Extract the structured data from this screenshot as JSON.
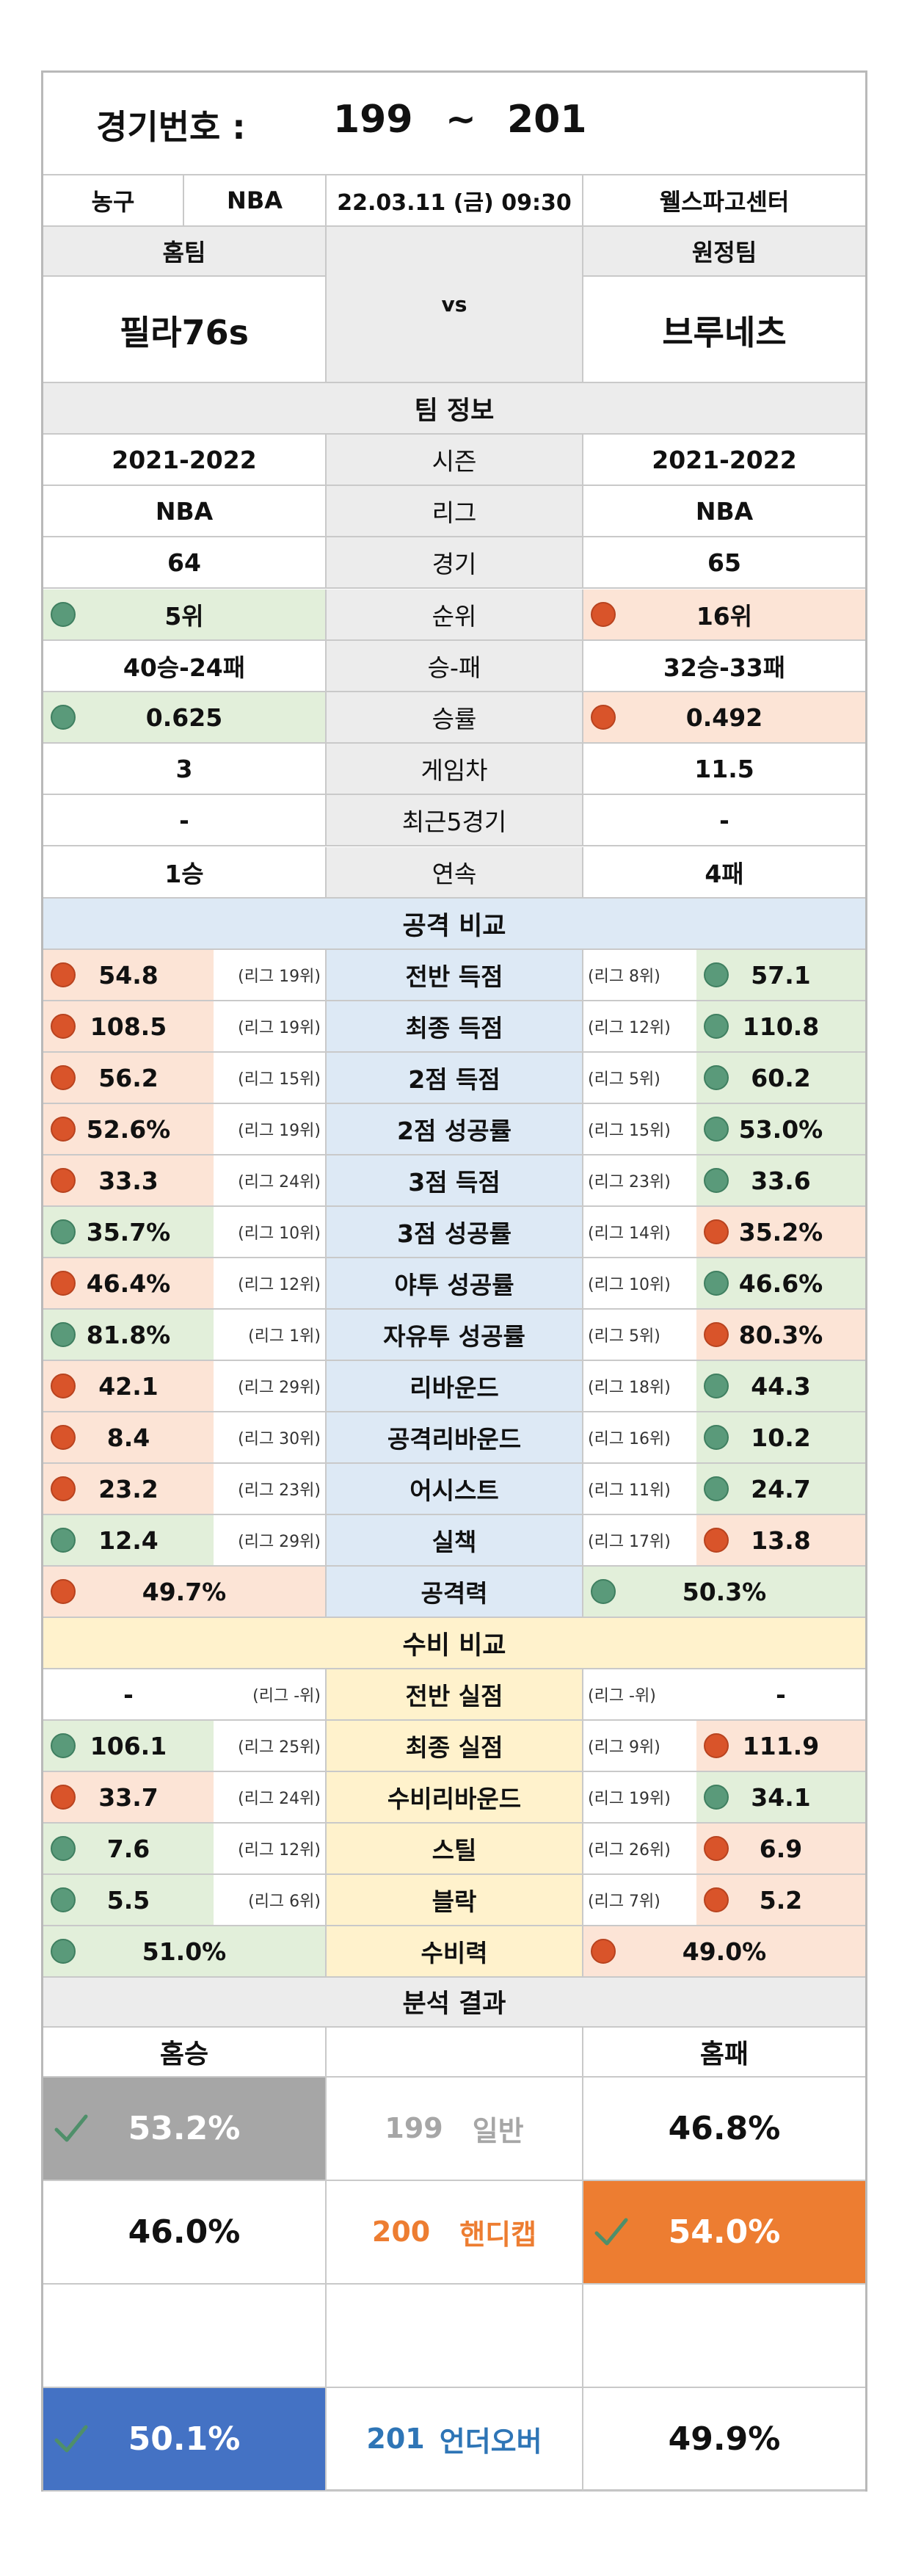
{
  "header": {
    "label": "경기번호 :",
    "start": "199",
    "tilde": "~",
    "end": "201"
  },
  "info": {
    "sport": "농구",
    "league": "NBA",
    "datetime": "22.03.11 (금) 09:30",
    "venue": "웰스파고센터"
  },
  "teams": {
    "home_label": "홈팀",
    "away_label": "원정팀",
    "vs": "vs",
    "home": "필라76s",
    "away": "브루네츠"
  },
  "team_info": {
    "title": "팀 정보",
    "rows": [
      {
        "home": "2021-2022",
        "label": "시즌",
        "away": "2021-2022",
        "home_dot": "",
        "away_dot": ""
      },
      {
        "home": "NBA",
        "label": "리그",
        "away": "NBA",
        "home_dot": "",
        "away_dot": ""
      },
      {
        "home": "64",
        "label": "경기",
        "away": "65",
        "home_dot": "",
        "away_dot": ""
      },
      {
        "home": "5위",
        "label": "순위",
        "away": "16위",
        "home_dot": "green",
        "away_dot": "red"
      },
      {
        "home": "40승-24패",
        "label": "승-패",
        "away": "32승-33패",
        "home_dot": "",
        "away_dot": ""
      },
      {
        "home": "0.625",
        "label": "승률",
        "away": "0.492",
        "home_dot": "green",
        "away_dot": "red"
      },
      {
        "home": "3",
        "label": "게임차",
        "away": "11.5",
        "home_dot": "",
        "away_dot": ""
      },
      {
        "home": "-",
        "label": "최근5경기",
        "away": "-",
        "home_dot": "",
        "away_dot": ""
      },
      {
        "home": "1승",
        "label": "연속",
        "away": "4패",
        "home_dot": "",
        "away_dot": ""
      }
    ]
  },
  "attack": {
    "title": "공격 비교",
    "rows": [
      {
        "hv": "54.8",
        "hr": "(리그 19위)",
        "label": "전반 득점",
        "ar": "(리그 8위)",
        "av": "57.1",
        "hd": "red",
        "ad": "green"
      },
      {
        "hv": "108.5",
        "hr": "(리그 19위)",
        "label": "최종 득점",
        "ar": "(리그 12위)",
        "av": "110.8",
        "hd": "red",
        "ad": "green"
      },
      {
        "hv": "56.2",
        "hr": "(리그 15위)",
        "label": "2점 득점",
        "ar": "(리그 5위)",
        "av": "60.2",
        "hd": "red",
        "ad": "green"
      },
      {
        "hv": "52.6%",
        "hr": "(리그 19위)",
        "label": "2점 성공률",
        "ar": "(리그 15위)",
        "av": "53.0%",
        "hd": "red",
        "ad": "green"
      },
      {
        "hv": "33.3",
        "hr": "(리그 24위)",
        "label": "3점 득점",
        "ar": "(리그 23위)",
        "av": "33.6",
        "hd": "red",
        "ad": "green"
      },
      {
        "hv": "35.7%",
        "hr": "(리그 10위)",
        "label": "3점 성공률",
        "ar": "(리그 14위)",
        "av": "35.2%",
        "hd": "green",
        "ad": "red"
      },
      {
        "hv": "46.4%",
        "hr": "(리그 12위)",
        "label": "야투 성공률",
        "ar": "(리그 10위)",
        "av": "46.6%",
        "hd": "red",
        "ad": "green"
      },
      {
        "hv": "81.8%",
        "hr": "(리그 1위)",
        "label": "자유투 성공률",
        "ar": "(리그 5위)",
        "av": "80.3%",
        "hd": "green",
        "ad": "red"
      },
      {
        "hv": "42.1",
        "hr": "(리그 29위)",
        "label": "리바운드",
        "ar": "(리그 18위)",
        "av": "44.3",
        "hd": "red",
        "ad": "green"
      },
      {
        "hv": "8.4",
        "hr": "(리그 30위)",
        "label": "공격리바운드",
        "ar": "(리그 16위)",
        "av": "10.2",
        "hd": "red",
        "ad": "green"
      },
      {
        "hv": "23.2",
        "hr": "(리그 23위)",
        "label": "어시스트",
        "ar": "(리그 11위)",
        "av": "24.7",
        "hd": "red",
        "ad": "green"
      },
      {
        "hv": "12.4",
        "hr": "(리그 29위)",
        "label": "실책",
        "ar": "(리그 17위)",
        "av": "13.8",
        "hd": "green",
        "ad": "red"
      }
    ],
    "total": {
      "label": "공격력",
      "home": "49.7%",
      "away": "50.3%",
      "hd": "red",
      "ad": "green"
    }
  },
  "defense": {
    "title": "수비 비교",
    "rows": [
      {
        "hv": "-",
        "hr": "(리그 -위)",
        "label": "전반 실점",
        "ar": "(리그 -위)",
        "av": "-",
        "hd": "",
        "ad": ""
      },
      {
        "hv": "106.1",
        "hr": "(리그 25위)",
        "label": "최종 실점",
        "ar": "(리그 9위)",
        "av": "111.9",
        "hd": "green",
        "ad": "red"
      },
      {
        "hv": "33.7",
        "hr": "(리그 24위)",
        "label": "수비리바운드",
        "ar": "(리그 19위)",
        "av": "34.1",
        "hd": "red",
        "ad": "green"
      },
      {
        "hv": "7.6",
        "hr": "(리그 12위)",
        "label": "스틸",
        "ar": "(리그 26위)",
        "av": "6.9",
        "hd": "green",
        "ad": "red"
      },
      {
        "hv": "5.5",
        "hr": "(리그 6위)",
        "label": "블락",
        "ar": "(리그 7위)",
        "av": "5.2",
        "hd": "green",
        "ad": "red"
      }
    ],
    "total": {
      "label": "수비력",
      "home": "51.0%",
      "away": "49.0%",
      "hd": "green",
      "ad": "red"
    }
  },
  "analysis": {
    "title": "분석 결과",
    "home_label": "홈승",
    "away_label": "홈패",
    "rows": [
      {
        "num": "199",
        "name": "일반",
        "home": "53.2%",
        "away": "46.8%",
        "pick": "home",
        "pick_color": "#a6a6a6",
        "text_color": "#a6a6a6"
      },
      {
        "num": "200",
        "name": "핸디캡",
        "home": "46.0%",
        "away": "54.0%",
        "pick": "away",
        "pick_color": "#ed7d31",
        "text_color": "#ed7d31"
      },
      {
        "num": "201",
        "name": "언더오버",
        "home": "50.1%",
        "away": "49.9%",
        "pick": "home",
        "pick_color": "#4472c4",
        "text_color": "#2e75b6"
      }
    ]
  },
  "colors": {
    "dot_green": "#5a9a7a",
    "dot_red": "#d9542a"
  }
}
